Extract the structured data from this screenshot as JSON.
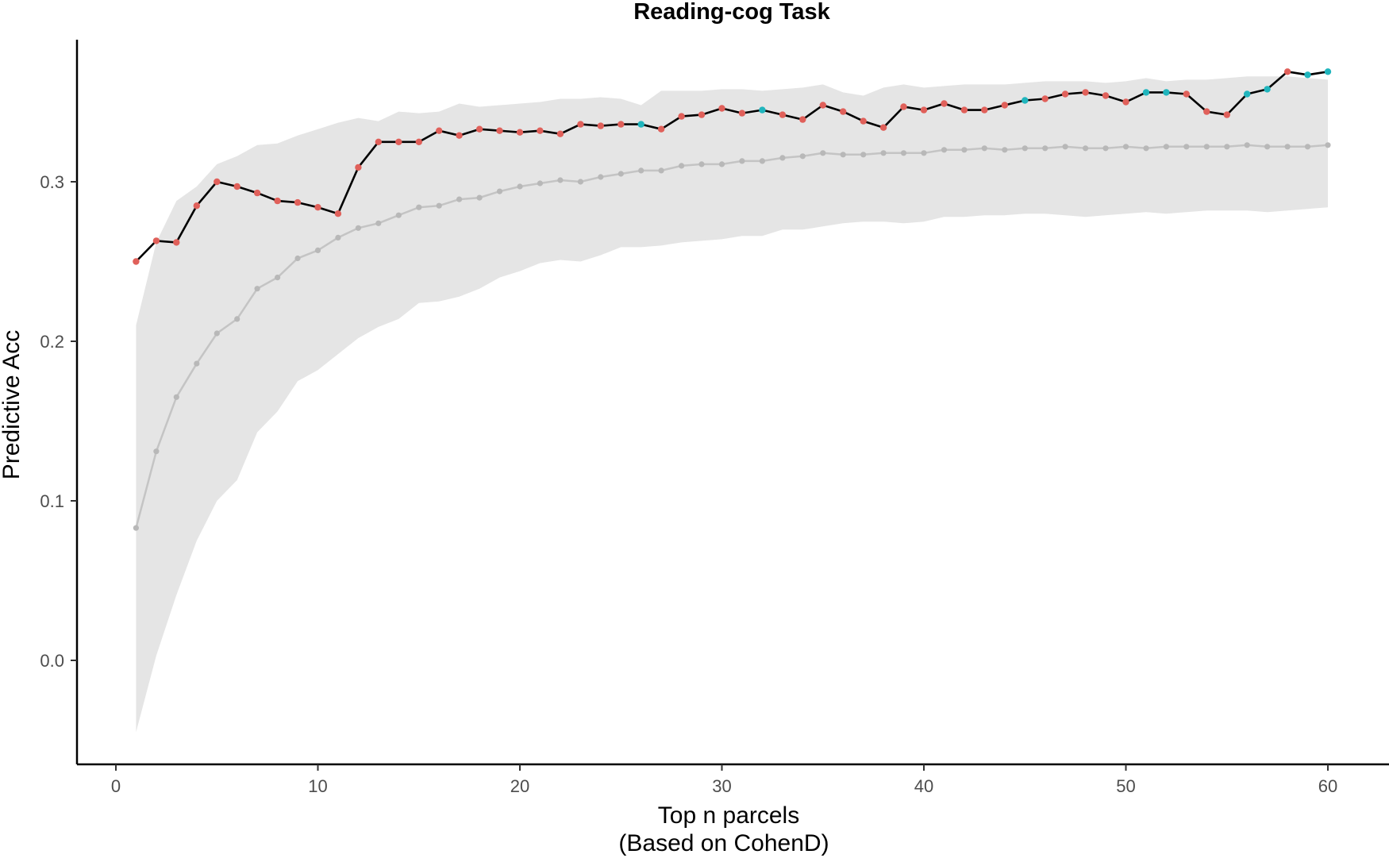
{
  "chart_data": {
    "type": "line",
    "title": "Reading-cog Task",
    "xlabel": "Top n parcels",
    "xlabel_sub": "(Based on CohenD)",
    "ylabel": "Predictive Acc",
    "xlim": [
      -1,
      62
    ],
    "ylim": [
      -0.065,
      0.39
    ],
    "x_ticks": [
      0,
      10,
      20,
      30,
      40,
      50,
      60
    ],
    "y_ticks": [
      0.0,
      0.1,
      0.2,
      0.3
    ],
    "y_tick_labels": [
      "0.0",
      "0.1",
      "0.2",
      "0.3"
    ],
    "grid": false,
    "legend": "none",
    "x": [
      1,
      2,
      3,
      4,
      5,
      6,
      7,
      8,
      9,
      10,
      11,
      12,
      13,
      14,
      15,
      16,
      17,
      18,
      19,
      20,
      21,
      22,
      23,
      24,
      25,
      26,
      27,
      28,
      29,
      30,
      31,
      32,
      33,
      34,
      35,
      36,
      37,
      38,
      39,
      40,
      41,
      42,
      43,
      44,
      45,
      46,
      47,
      48,
      49,
      50,
      51,
      52,
      53,
      54,
      55,
      56,
      57,
      58,
      59,
      60
    ],
    "series": [
      {
        "values": [
          0.25,
          0.263,
          0.262,
          0.285,
          0.3,
          0.297,
          0.293,
          0.288,
          0.287,
          0.284,
          0.28,
          0.309,
          0.325,
          0.325,
          0.325,
          0.332,
          0.329,
          0.333,
          0.332,
          0.331,
          0.332,
          0.33,
          0.336,
          0.335,
          0.336,
          0.336,
          0.333,
          0.341,
          0.342,
          0.346,
          0.343,
          0.345,
          0.342,
          0.339,
          0.348,
          0.344,
          0.338,
          0.334,
          0.347,
          0.345,
          0.349,
          0.345,
          0.345,
          0.348,
          0.351,
          0.352,
          0.355,
          0.356,
          0.354,
          0.35,
          0.356,
          0.356,
          0.355,
          0.344,
          0.342,
          0.355,
          0.358,
          0.369,
          0.367,
          0.369
        ],
        "point_colors": [
          "#e0605a",
          "#e0605a",
          "#e0605a",
          "#e0605a",
          "#e0605a",
          "#e0605a",
          "#e0605a",
          "#e0605a",
          "#e0605a",
          "#e0605a",
          "#e0605a",
          "#e0605a",
          "#e0605a",
          "#e0605a",
          "#e0605a",
          "#e0605a",
          "#e0605a",
          "#e0605a",
          "#e0605a",
          "#e0605a",
          "#e0605a",
          "#e0605a",
          "#e0605a",
          "#e0605a",
          "#e0605a",
          "#20b5bd",
          "#e0605a",
          "#e0605a",
          "#e0605a",
          "#e0605a",
          "#e0605a",
          "#20b5bd",
          "#e0605a",
          "#e0605a",
          "#e0605a",
          "#e0605a",
          "#e0605a",
          "#e0605a",
          "#e0605a",
          "#e0605a",
          "#e0605a",
          "#e0605a",
          "#e0605a",
          "#e0605a",
          "#20b5bd",
          "#e0605a",
          "#e0605a",
          "#e0605a",
          "#e0605a",
          "#e0605a",
          "#20b5bd",
          "#20b5bd",
          "#e0605a",
          "#e0605a",
          "#e0605a",
          "#20b5bd",
          "#20b5bd",
          "#e0605a",
          "#20b5bd",
          "#20b5bd"
        ],
        "line_color": "#000000"
      },
      {
        "values": [
          0.083,
          0.131,
          0.165,
          0.186,
          0.205,
          0.214,
          0.233,
          0.24,
          0.252,
          0.257,
          0.265,
          0.271,
          0.274,
          0.279,
          0.284,
          0.285,
          0.289,
          0.29,
          0.294,
          0.297,
          0.299,
          0.301,
          0.3,
          0.303,
          0.305,
          0.307,
          0.307,
          0.31,
          0.311,
          0.311,
          0.313,
          0.313,
          0.315,
          0.316,
          0.318,
          0.317,
          0.317,
          0.318,
          0.318,
          0.318,
          0.32,
          0.32,
          0.321,
          0.32,
          0.321,
          0.321,
          0.322,
          0.321,
          0.321,
          0.322,
          0.321,
          0.322,
          0.322,
          0.322,
          0.322,
          0.323,
          0.322,
          0.322,
          0.322,
          0.323
        ],
        "line_color": "#c4c4c4",
        "point_color": "#b8b8b8"
      }
    ],
    "band": {
      "upper": [
        0.21,
        0.262,
        0.288,
        0.297,
        0.311,
        0.316,
        0.323,
        0.324,
        0.329,
        0.333,
        0.337,
        0.34,
        0.338,
        0.344,
        0.343,
        0.344,
        0.349,
        0.347,
        0.348,
        0.349,
        0.35,
        0.352,
        0.352,
        0.353,
        0.352,
        0.348,
        0.357,
        0.357,
        0.357,
        0.358,
        0.358,
        0.357,
        0.358,
        0.359,
        0.361,
        0.356,
        0.354,
        0.359,
        0.361,
        0.359,
        0.36,
        0.361,
        0.361,
        0.361,
        0.362,
        0.363,
        0.363,
        0.363,
        0.362,
        0.363,
        0.365,
        0.363,
        0.364,
        0.364,
        0.365,
        0.366,
        0.366,
        0.366,
        0.365,
        0.364
      ],
      "lower": [
        -0.045,
        0.003,
        0.041,
        0.075,
        0.1,
        0.113,
        0.143,
        0.156,
        0.175,
        0.182,
        0.192,
        0.202,
        0.209,
        0.214,
        0.224,
        0.225,
        0.228,
        0.233,
        0.24,
        0.244,
        0.249,
        0.251,
        0.25,
        0.254,
        0.259,
        0.259,
        0.26,
        0.262,
        0.263,
        0.264,
        0.266,
        0.266,
        0.27,
        0.27,
        0.272,
        0.274,
        0.275,
        0.275,
        0.274,
        0.275,
        0.278,
        0.278,
        0.279,
        0.279,
        0.28,
        0.28,
        0.279,
        0.278,
        0.279,
        0.28,
        0.281,
        0.28,
        0.281,
        0.282,
        0.282,
        0.282,
        0.281,
        0.282,
        0.283,
        0.284
      ],
      "color": "#e5e5e5"
    }
  }
}
